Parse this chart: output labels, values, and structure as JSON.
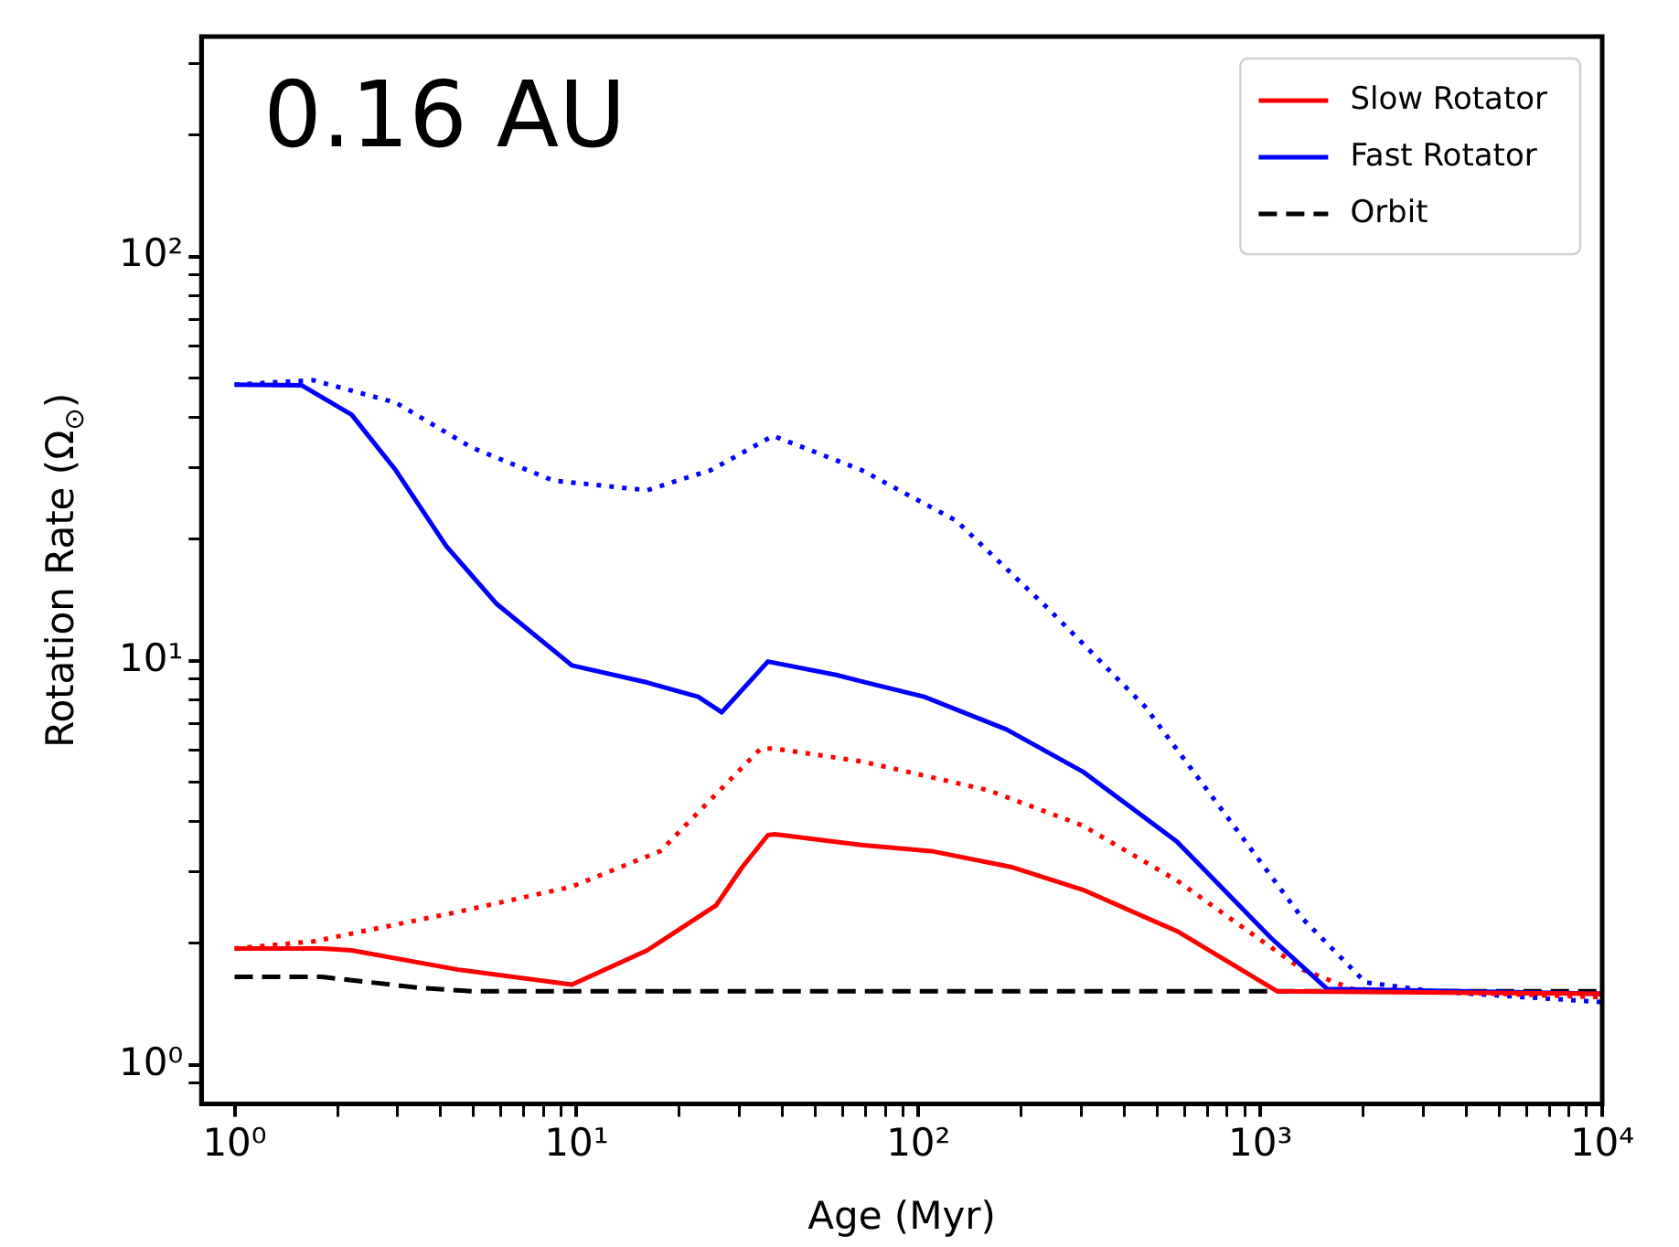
{
  "chart_data": {
    "type": "line",
    "xlabel": "Age (Myr)",
    "ylabel": "Rotation Rate (Ω$_{⊙}$)",
    "annotations": [
      "0.16 AU"
    ],
    "log": "xy",
    "legend": "top right",
    "xlim": [
      0.8,
      10000
    ],
    "ylim": [
      0.8,
      350
    ],
    "xticks": [
      {
        "value": 1,
        "label": "10⁰"
      },
      {
        "value": 2,
        "label": null
      },
      {
        "value": 3,
        "label": null
      },
      {
        "value": 4,
        "label": null
      },
      {
        "value": 5,
        "label": null
      },
      {
        "value": 6,
        "label": null
      },
      {
        "value": 7,
        "label": null
      },
      {
        "value": 8,
        "label": null
      },
      {
        "value": 9,
        "label": null
      },
      {
        "value": 10,
        "label": "10¹"
      },
      {
        "value": 20,
        "label": null
      },
      {
        "value": 30,
        "label": null
      },
      {
        "value": 40,
        "label": null
      },
      {
        "value": 50,
        "label": null
      },
      {
        "value": 60,
        "label": null
      },
      {
        "value": 70,
        "label": null
      },
      {
        "value": 80,
        "label": null
      },
      {
        "value": 90,
        "label": null
      },
      {
        "value": 100,
        "label": "10²"
      },
      {
        "value": 200,
        "label": null
      },
      {
        "value": 300,
        "label": null
      },
      {
        "value": 400,
        "label": null
      },
      {
        "value": 500,
        "label": null
      },
      {
        "value": 600,
        "label": null
      },
      {
        "value": 700,
        "label": null
      },
      {
        "value": 800,
        "label": null
      },
      {
        "value": 900,
        "label": null
      },
      {
        "value": 1000,
        "label": "10³"
      },
      {
        "value": 2000,
        "label": null
      },
      {
        "value": 3000,
        "label": null
      },
      {
        "value": 4000,
        "label": null
      },
      {
        "value": 5000,
        "label": null
      },
      {
        "value": 6000,
        "label": null
      },
      {
        "value": 7000,
        "label": null
      },
      {
        "value": 8000,
        "label": null
      },
      {
        "value": 9000,
        "label": null
      },
      {
        "value": 10000,
        "label": "10⁴"
      }
    ],
    "yticks": [
      {
        "value": 0.9,
        "label": null
      },
      {
        "value": 1,
        "label": "10⁰"
      },
      {
        "value": 2,
        "label": null
      },
      {
        "value": 3,
        "label": null
      },
      {
        "value": 4,
        "label": null
      },
      {
        "value": 5,
        "label": null
      },
      {
        "value": 6,
        "label": null
      },
      {
        "value": 7,
        "label": null
      },
      {
        "value": 8,
        "label": null
      },
      {
        "value": 9,
        "label": null
      },
      {
        "value": 10,
        "label": "10¹"
      },
      {
        "value": 20,
        "label": null
      },
      {
        "value": 30,
        "label": null
      },
      {
        "value": 40,
        "label": null
      },
      {
        "value": 50,
        "label": null
      },
      {
        "value": 60,
        "label": null
      },
      {
        "value": 70,
        "label": null
      },
      {
        "value": 80,
        "label": null
      },
      {
        "value": 90,
        "label": null
      },
      {
        "value": 100,
        "label": "10²"
      },
      {
        "value": 200,
        "label": null
      },
      {
        "value": 300,
        "label": null
      }
    ],
    "series": [
      {
        "name": "Slow Rotator",
        "color": "#ff0000",
        "line_style": "solid",
        "x": [
          1,
          1.8,
          2.2,
          4.5,
          9.7,
          16.1,
          25.6,
          30.5,
          36.3,
          38,
          68,
          109,
          189,
          303,
          572,
          1122,
          10000
        ],
        "values": [
          1.94,
          1.94,
          1.92,
          1.72,
          1.58,
          1.92,
          2.48,
          3.08,
          3.7,
          3.72,
          3.5,
          3.38,
          3.08,
          2.71,
          2.14,
          1.52,
          1.5
        ]
      },
      {
        "name": "Fast Rotator",
        "color": "#0000ff",
        "line_style": "solid",
        "x": [
          1,
          1.57,
          2.2,
          2.96,
          4.16,
          5.85,
          9.7,
          16.1,
          22.7,
          26.6,
          36.3,
          57.5,
          68.3,
          104,
          181,
          302,
          570,
          1075,
          1570,
          10000
        ],
        "values": [
          48.2,
          48,
          40.6,
          29.6,
          19.2,
          13.8,
          9.73,
          8.83,
          8.14,
          7.45,
          9.95,
          9.22,
          8.88,
          8.14,
          6.76,
          5.32,
          3.57,
          2.06,
          1.54,
          1.5
        ]
      },
      {
        "name": "Orbit",
        "color": "#000000",
        "line_style": "dashed",
        "x": [
          1,
          1.8,
          2.5,
          3.5,
          5,
          10000
        ],
        "values": [
          1.65,
          1.65,
          1.6,
          1.55,
          1.52,
          1.52
        ]
      },
      {
        "color": "#ff0000",
        "line_style": "dotted",
        "x": [
          1,
          1.7,
          4.5,
          9.7,
          17.6,
          25.7,
          34.6,
          38,
          68.5,
          160,
          302,
          570,
          868,
          1330,
          1860,
          10000
        ],
        "values": [
          1.94,
          2.02,
          2.39,
          2.76,
          3.38,
          4.69,
          6.06,
          6.06,
          5.63,
          4.78,
          3.91,
          2.86,
          2.22,
          1.72,
          1.54,
          1.47
        ]
      },
      {
        "color": "#0000ff",
        "line_style": "dotted",
        "x": [
          1,
          1.7,
          2.96,
          4.93,
          8.55,
          16.1,
          24.7,
          37.6,
          68.3,
          129,
          243,
          460,
          796,
          1330,
          2030,
          3200,
          10000
        ],
        "values": [
          48.2,
          49.4,
          43.5,
          33.7,
          27.9,
          26.4,
          29.6,
          36,
          29.6,
          22.2,
          13.3,
          7.7,
          4.13,
          2.3,
          1.6,
          1.52,
          1.43
        ]
      }
    ]
  }
}
